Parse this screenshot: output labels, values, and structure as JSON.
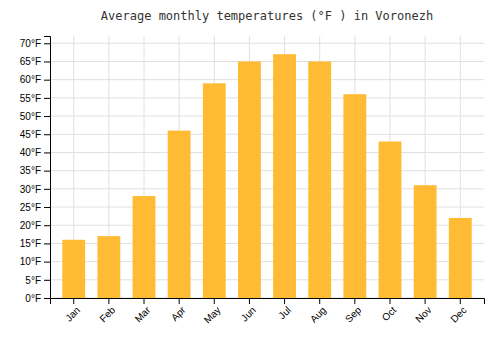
{
  "chart_data": {
    "type": "bar",
    "title": "Average monthly temperatures (°F ) in Voronezh",
    "categories": [
      "Jan",
      "Feb",
      "Mar",
      "Apr",
      "May",
      "Jun",
      "Jul",
      "Aug",
      "Sep",
      "Oct",
      "Nov",
      "Dec"
    ],
    "values": [
      16,
      17,
      28,
      46,
      59,
      65,
      67,
      65,
      56,
      43,
      31,
      22
    ],
    "color": "#FFBB33",
    "ylim": [
      0,
      72
    ],
    "yticks": [
      {
        "value": 0,
        "label": "0°F"
      },
      {
        "value": 5,
        "label": "5°F"
      },
      {
        "value": 10,
        "label": "10°F"
      },
      {
        "value": 15,
        "label": "15°F"
      },
      {
        "value": 20,
        "label": "20°F"
      },
      {
        "value": 25,
        "label": "25°F"
      },
      {
        "value": 30,
        "label": "30°F"
      },
      {
        "value": 35,
        "label": "35°F"
      },
      {
        "value": 40,
        "label": "40°F"
      },
      {
        "value": 45,
        "label": "45°F"
      },
      {
        "value": 50,
        "label": "50°F"
      },
      {
        "value": 55,
        "label": "55°F"
      },
      {
        "value": 60,
        "label": "60°F"
      },
      {
        "value": 65,
        "label": "65°F"
      },
      {
        "value": 70,
        "label": "70°F"
      }
    ],
    "grid": true
  }
}
